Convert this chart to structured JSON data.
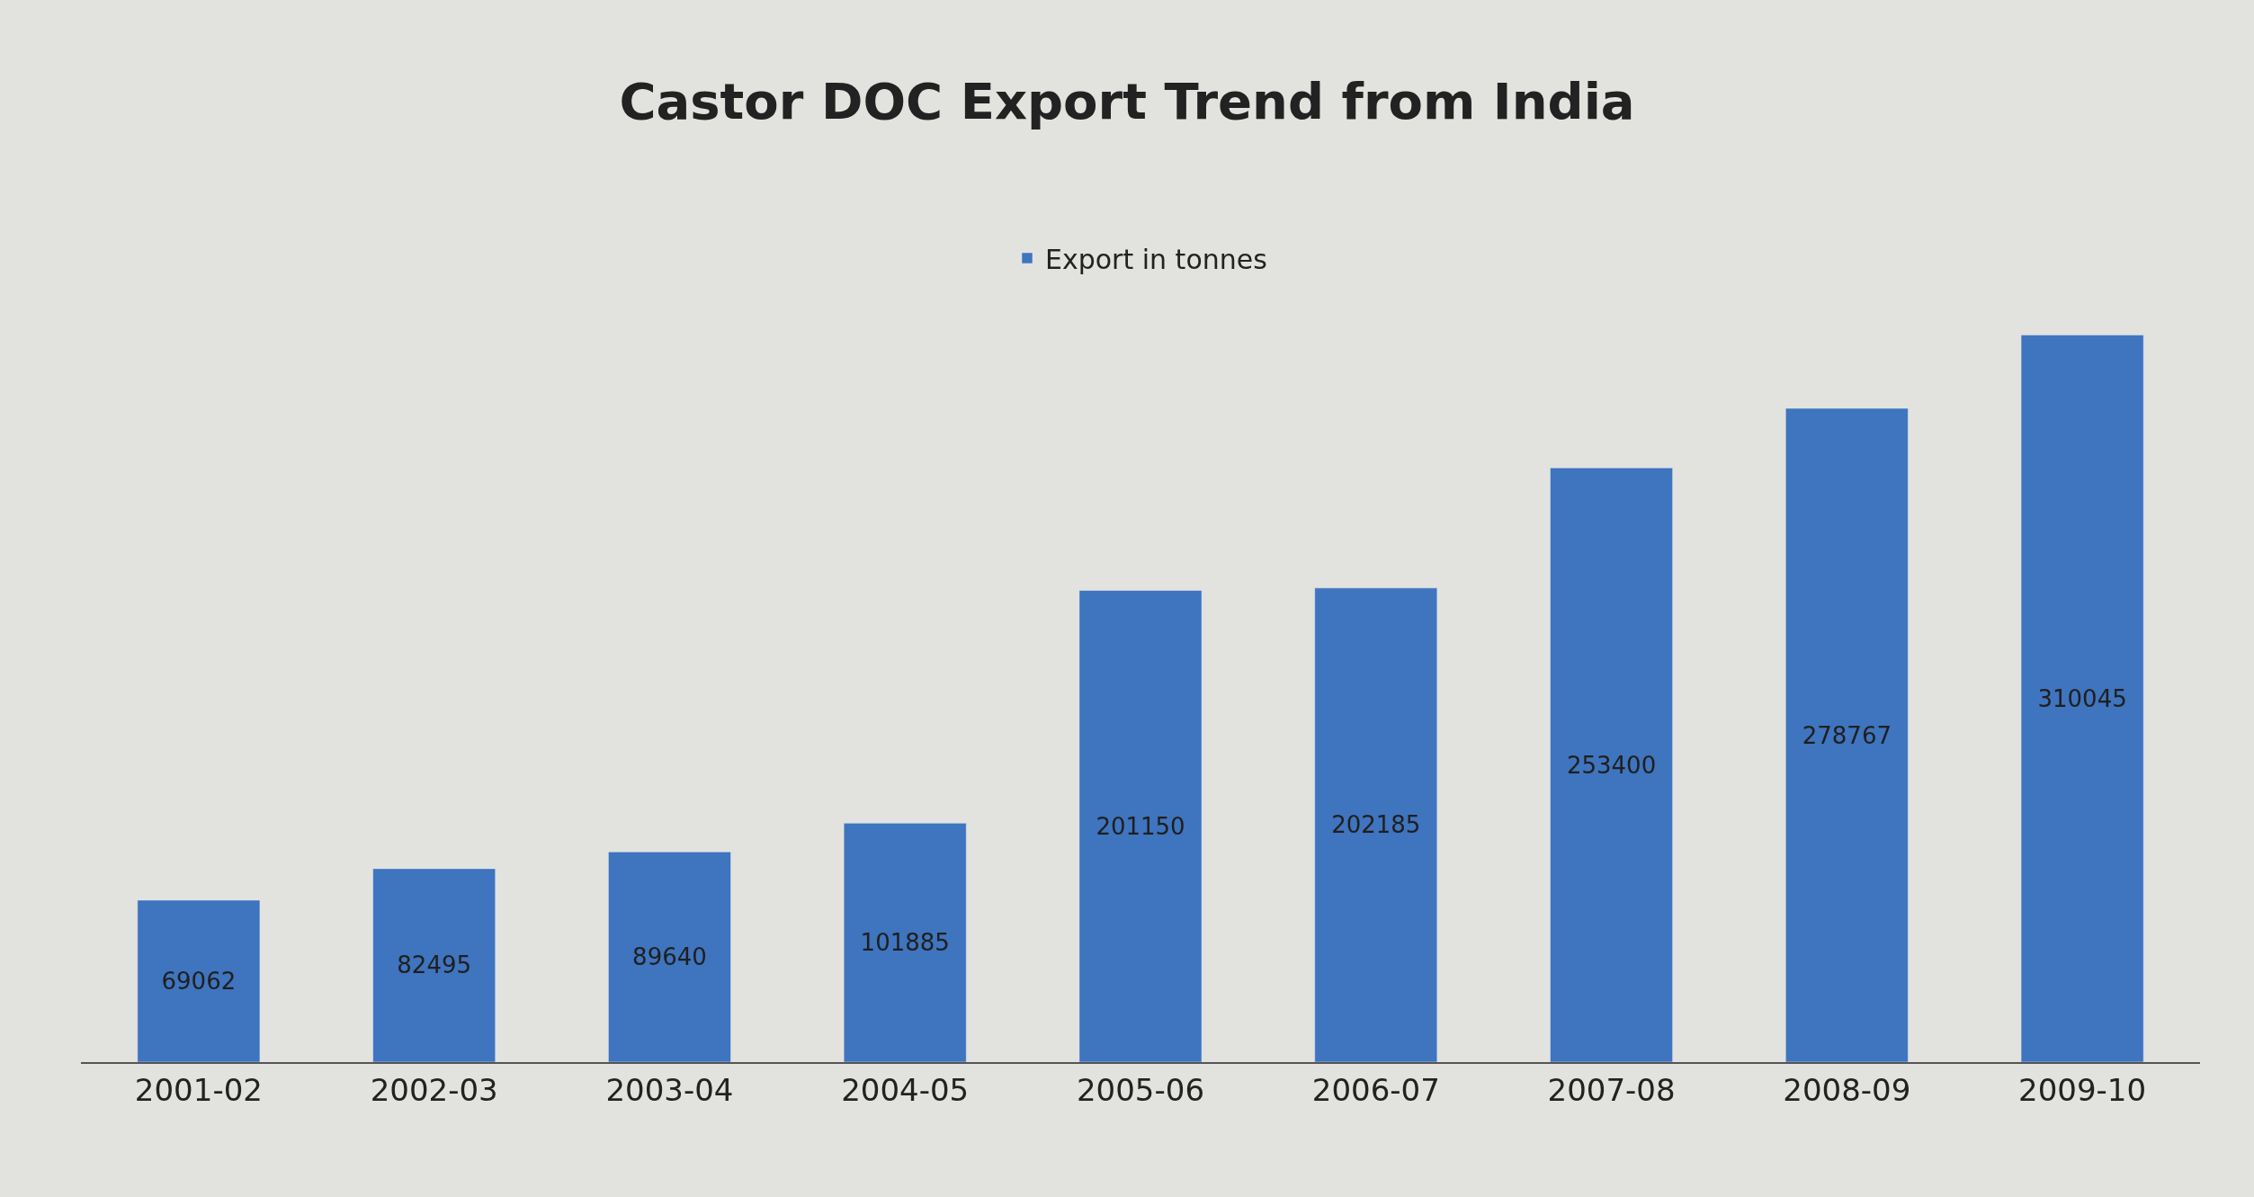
{
  "chart_data": {
    "type": "bar",
    "title": "Castor DOC Export Trend from India",
    "categories": [
      "2001-02",
      "2002-03",
      "2003-04",
      "2004-05",
      "2005-06",
      "2006-07",
      "2007-08",
      "2008-09",
      "2009-10"
    ],
    "series": [
      {
        "name": "Export in tonnes",
        "color": "#3f74be",
        "values": [
          69062,
          82495,
          89640,
          101885,
          201150,
          202185,
          253400,
          278767,
          310045
        ]
      }
    ],
    "data_labels": true,
    "legend": "top",
    "grid": false
  }
}
